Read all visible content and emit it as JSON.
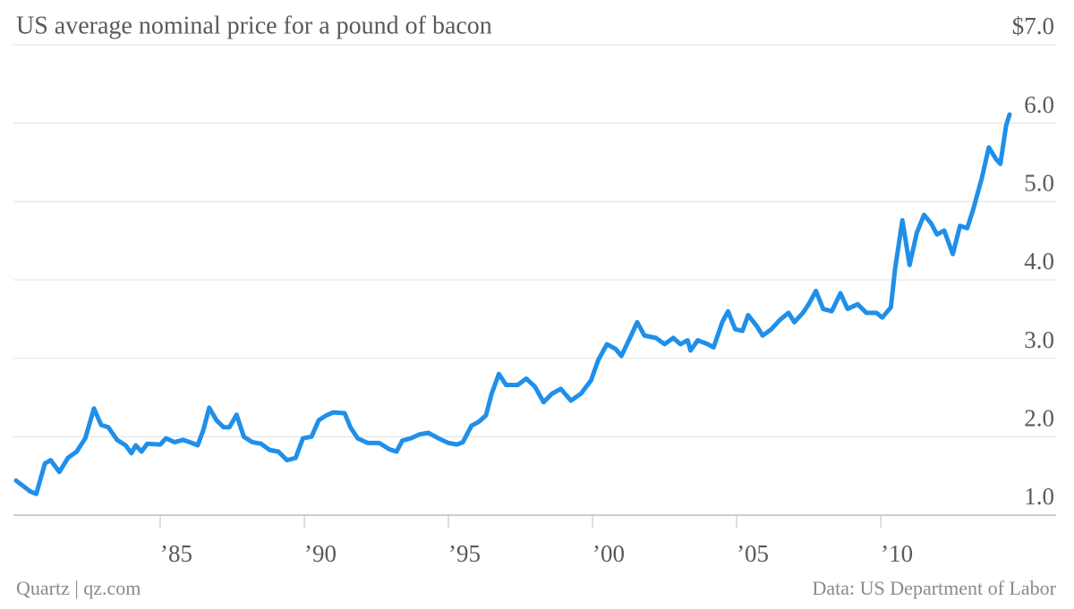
{
  "chart_data": {
    "type": "line",
    "title": "US average nominal price for a pound of bacon",
    "source_left": "Quartz | qz.com",
    "source_right": "Data: US Department of Labor",
    "color": "#1f8fea",
    "grid": true,
    "xlim": [
      1980,
      2014.5
    ],
    "xticks": [
      {
        "value": 1985,
        "label": "’85"
      },
      {
        "value": 1990,
        "label": "’90"
      },
      {
        "value": 1995,
        "label": "’95"
      },
      {
        "value": 2000,
        "label": "’00"
      },
      {
        "value": 2005,
        "label": "’05"
      },
      {
        "value": 2010,
        "label": "’10"
      }
    ],
    "ylim": [
      1,
      7
    ],
    "yticks": [
      {
        "value": 1,
        "label": "1.0"
      },
      {
        "value": 2,
        "label": "2.0"
      },
      {
        "value": 3,
        "label": "3.0"
      },
      {
        "value": 4,
        "label": "4.0"
      },
      {
        "value": 5,
        "label": "5.0"
      },
      {
        "value": 6,
        "label": "6.0"
      },
      {
        "value": 7,
        "label": "$7.0"
      }
    ],
    "x": [
      1980.0,
      1980.5,
      1980.7,
      1981.0,
      1981.2,
      1981.5,
      1981.8,
      1982.1,
      1982.4,
      1982.7,
      1982.95,
      1983.2,
      1983.5,
      1983.8,
      1984.0,
      1984.15,
      1984.35,
      1984.55,
      1985.0,
      1985.2,
      1985.5,
      1985.8,
      1986.1,
      1986.3,
      1986.5,
      1986.7,
      1986.95,
      1987.2,
      1987.4,
      1987.65,
      1987.9,
      1988.2,
      1988.5,
      1988.8,
      1989.1,
      1989.4,
      1989.7,
      1989.95,
      1990.25,
      1990.5,
      1990.75,
      1991.0,
      1991.4,
      1991.6,
      1991.85,
      1992.2,
      1992.6,
      1992.95,
      1993.2,
      1993.4,
      1993.7,
      1994.0,
      1994.3,
      1994.65,
      1995.0,
      1995.3,
      1995.5,
      1995.8,
      1996.05,
      1996.3,
      1996.5,
      1996.75,
      1997.0,
      1997.4,
      1997.7,
      1998.0,
      1998.3,
      1998.6,
      1998.9,
      1999.25,
      1999.6,
      1999.95,
      2000.2,
      2000.5,
      2000.8,
      2001.0,
      2001.3,
      2001.55,
      2001.8,
      2002.2,
      2002.5,
      2002.8,
      2003.05,
      2003.3,
      2003.4,
      2003.65,
      2004.0,
      2004.2,
      2004.5,
      2004.7,
      2004.95,
      2005.2,
      2005.4,
      2005.7,
      2005.9,
      2006.2,
      2006.5,
      2006.8,
      2007.0,
      2007.3,
      2007.5,
      2007.75,
      2008.0,
      2008.3,
      2008.6,
      2008.85,
      2009.2,
      2009.5,
      2009.85,
      2010.05,
      2010.35,
      2010.5,
      2010.75,
      2011.0,
      2011.25,
      2011.5,
      2011.75,
      2011.95,
      2012.2,
      2012.5,
      2012.75,
      2013.0,
      2013.2,
      2013.5,
      2013.75,
      2014.0,
      2014.15,
      2014.35,
      2014.47
    ],
    "values": [
      1.44,
      1.3,
      1.27,
      1.66,
      1.7,
      1.55,
      1.73,
      1.81,
      1.98,
      2.36,
      2.15,
      2.12,
      1.96,
      1.89,
      1.79,
      1.89,
      1.81,
      1.91,
      1.9,
      1.98,
      1.93,
      1.96,
      1.92,
      1.89,
      2.09,
      2.37,
      2.21,
      2.12,
      2.12,
      2.28,
      2.0,
      1.93,
      1.91,
      1.83,
      1.81,
      1.7,
      1.73,
      1.98,
      2.0,
      2.21,
      2.27,
      2.31,
      2.3,
      2.12,
      1.98,
      1.92,
      1.92,
      1.84,
      1.81,
      1.95,
      1.98,
      2.03,
      2.05,
      1.98,
      1.92,
      1.9,
      1.93,
      2.14,
      2.19,
      2.27,
      2.55,
      2.8,
      2.66,
      2.66,
      2.74,
      2.64,
      2.44,
      2.55,
      2.61,
      2.46,
      2.55,
      2.72,
      2.98,
      3.18,
      3.12,
      3.03,
      3.26,
      3.46,
      3.29,
      3.26,
      3.18,
      3.26,
      3.18,
      3.23,
      3.1,
      3.23,
      3.18,
      3.14,
      3.46,
      3.6,
      3.37,
      3.35,
      3.55,
      3.41,
      3.29,
      3.37,
      3.49,
      3.58,
      3.46,
      3.58,
      3.69,
      3.86,
      3.63,
      3.6,
      3.83,
      3.63,
      3.69,
      3.58,
      3.58,
      3.52,
      3.65,
      4.15,
      4.76,
      4.19,
      4.6,
      4.83,
      4.72,
      4.58,
      4.63,
      4.33,
      4.69,
      4.66,
      4.89,
      5.29,
      5.69,
      5.54,
      5.48,
      5.97,
      6.11
    ]
  }
}
